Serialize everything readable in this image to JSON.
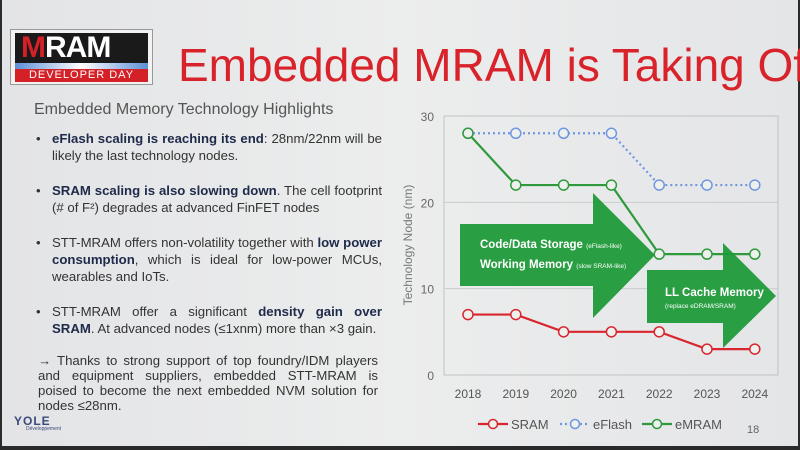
{
  "logo": {
    "word": "MRAM",
    "subtitle": "DEVELOPER DAY"
  },
  "title": "Embedded MRAM is Taking Off!",
  "subtitle": "Embedded Memory Technology Highlights",
  "bullets": [
    {
      "bold": "eFlash scaling is reaching its end",
      "rest": ": 28nm/22nm will be likely the last technology nodes."
    },
    {
      "bold": "SRAM scaling is also slowing down",
      "rest": ". The cell footprint (# of F²) degrades at advanced FinFET nodes"
    },
    {
      "pre": "STT-MRAM offers non-volatility together with ",
      "bold": "low power consumption",
      "rest": ", which is ideal for low-power MCUs, wearables and IoTs."
    },
    {
      "pre": "STT-MRAM offer a significant ",
      "bold": "density gain over SRAM",
      "rest": ". At advanced nodes (≤1xnm) more than ×3 gain."
    }
  ],
  "conclusion": "→ Thanks to strong support of top foundry/IDM players and equipment suppliers, embedded STT-MRAM is poised to become the next embedded NVM solution for nodes ≤28nm.",
  "footer": {
    "brand": "YOLE",
    "brand_sub": "Développement",
    "page": "18"
  },
  "chart_data": {
    "type": "line",
    "title": "",
    "xlabel": "",
    "ylabel": "Technology Node (nm)",
    "ylim": [
      0,
      30
    ],
    "yticks": [
      0,
      10,
      20,
      30
    ],
    "categories": [
      "2018",
      "2019",
      "2020",
      "2021",
      "2022",
      "2023",
      "2024"
    ],
    "grid": true,
    "legend": "bottom",
    "series": [
      {
        "name": "SRAM",
        "values": [
          7,
          7,
          5,
          5,
          5,
          3,
          3
        ],
        "color": "#d9262e",
        "style": "solid"
      },
      {
        "name": "eFlash",
        "values": [
          28,
          28,
          28,
          28,
          22,
          22,
          22
        ],
        "color": "#6f96e0",
        "style": "dotted"
      },
      {
        "name": "eMRAM",
        "values": [
          28,
          22,
          22,
          22,
          14,
          14,
          14
        ],
        "color": "#2e9a3c",
        "style": "solid"
      }
    ],
    "annotations": [
      {
        "line1": "Code/Data Storage",
        "line1_note": "(eFlash-like)",
        "line2": "Working Memory",
        "line2_note": "(slow SRAM-like)"
      },
      {
        "line1": "LL Cache Memory",
        "line1_note": "(replace eDRAM/SRAM)"
      }
    ]
  }
}
